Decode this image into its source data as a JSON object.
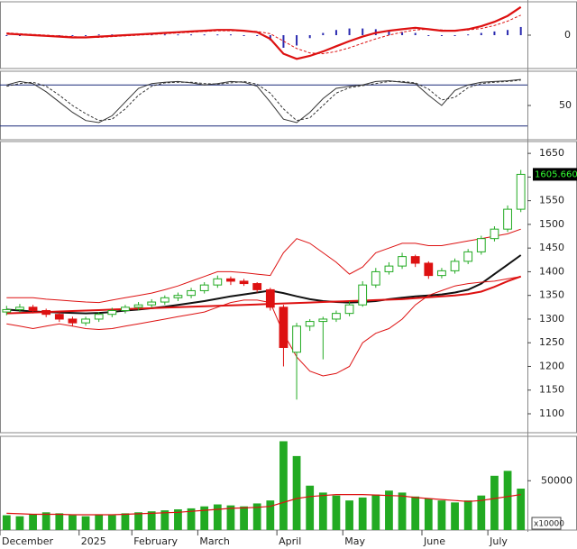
{
  "chart_data": [
    {
      "type": "macd",
      "ylim": [
        -45,
        45
      ],
      "yticks": [
        0
      ],
      "macd_color": "#dd1111",
      "signal_color": "#dd1111",
      "hist_color": "#2a2ab0",
      "macd": [
        2,
        1,
        0,
        -1,
        -2,
        -3,
        -3,
        -2,
        -1,
        0,
        1,
        2,
        3,
        4,
        5,
        6,
        7,
        7,
        6,
        4,
        -5,
        -25,
        -32,
        -28,
        -22,
        -15,
        -8,
        -2,
        3,
        6,
        8,
        10,
        8,
        6,
        6,
        8,
        12,
        18,
        26,
        38
      ],
      "signal": [
        3,
        2,
        1,
        0,
        -1,
        -2,
        -3,
        -3,
        -2,
        -1,
        0,
        1,
        2,
        3,
        4,
        5,
        6,
        6,
        6,
        5,
        2,
        -8,
        -18,
        -24,
        -25,
        -22,
        -17,
        -11,
        -5,
        0,
        4,
        7,
        8,
        7,
        6,
        7,
        9,
        13,
        19,
        27
      ],
      "histogram": [
        -1,
        -1,
        -1,
        -1,
        -1,
        -1,
        0,
        1,
        1,
        1,
        1,
        1,
        1,
        1,
        1,
        1,
        1,
        1,
        0,
        -1,
        -7,
        -17,
        -14,
        -4,
        3,
        7,
        9,
        9,
        8,
        6,
        4,
        3,
        0,
        -1,
        0,
        1,
        3,
        5,
        7,
        11
      ]
    },
    {
      "type": "oscillator",
      "ylim": [
        0,
        100
      ],
      "yticks": [
        50
      ],
      "levels": [
        20,
        80
      ],
      "color": "#333333",
      "k": [
        80,
        85,
        82,
        70,
        55,
        40,
        28,
        25,
        35,
        55,
        75,
        82,
        84,
        85,
        83,
        80,
        82,
        85,
        84,
        78,
        55,
        30,
        25,
        40,
        60,
        75,
        78,
        80,
        85,
        86,
        84,
        82,
        65,
        50,
        72,
        80,
        84,
        85,
        86,
        88
      ],
      "d": [
        78,
        82,
        84,
        78,
        65,
        50,
        38,
        28,
        30,
        45,
        65,
        78,
        83,
        84,
        84,
        82,
        81,
        83,
        85,
        81,
        68,
        45,
        28,
        32,
        50,
        68,
        76,
        79,
        82,
        85,
        85,
        83,
        74,
        58,
        62,
        76,
        82,
        84,
        85,
        87
      ]
    },
    {
      "type": "candlestick",
      "ylim": [
        1060,
        1675
      ],
      "yticks": [
        1100,
        1150,
        1200,
        1250,
        1300,
        1350,
        1400,
        1450,
        1500,
        1550,
        1600,
        1650
      ],
      "up_color": "#22aa22",
      "down_color": "#dd1111",
      "open": [
        1315,
        1320,
        1325,
        1318,
        1310,
        1300,
        1292,
        1300,
        1310,
        1318,
        1325,
        1330,
        1336,
        1345,
        1350,
        1360,
        1372,
        1385,
        1380,
        1375,
        1362,
        1325,
        1230,
        1285,
        1295,
        1300,
        1312,
        1330,
        1372,
        1400,
        1412,
        1432,
        1418,
        1392,
        1402,
        1422,
        1442,
        1470,
        1490,
        1532
      ],
      "high": [
        1328,
        1332,
        1330,
        1322,
        1314,
        1305,
        1305,
        1315,
        1324,
        1330,
        1336,
        1342,
        1350,
        1356,
        1366,
        1378,
        1392,
        1390,
        1385,
        1378,
        1366,
        1330,
        1292,
        1300,
        1305,
        1318,
        1338,
        1380,
        1408,
        1420,
        1440,
        1436,
        1422,
        1408,
        1428,
        1448,
        1476,
        1496,
        1540,
        1615
      ],
      "low": [
        1308,
        1314,
        1312,
        1304,
        1294,
        1285,
        1286,
        1294,
        1304,
        1312,
        1318,
        1324,
        1330,
        1338,
        1344,
        1354,
        1366,
        1372,
        1370,
        1356,
        1318,
        1200,
        1130,
        1275,
        1215,
        1294,
        1306,
        1326,
        1366,
        1394,
        1406,
        1410,
        1385,
        1386,
        1396,
        1416,
        1436,
        1464,
        1484,
        1526
      ],
      "close": [
        1320,
        1325,
        1318,
        1310,
        1300,
        1292,
        1300,
        1310,
        1318,
        1325,
        1330,
        1336,
        1345,
        1350,
        1360,
        1372,
        1385,
        1380,
        1375,
        1362,
        1325,
        1240,
        1285,
        1295,
        1300,
        1312,
        1330,
        1372,
        1400,
        1412,
        1432,
        1418,
        1392,
        1402,
        1422,
        1442,
        1470,
        1490,
        1532,
        1605.66
      ],
      "overlays": [
        {
          "color": "#111111",
          "width": 2,
          "values": [
            1320,
            1318,
            1316,
            1315,
            1314,
            1313,
            1312,
            1313,
            1315,
            1318,
            1320,
            1323,
            1326,
            1330,
            1334,
            1338,
            1343,
            1348,
            1352,
            1356,
            1360,
            1355,
            1348,
            1342,
            1338,
            1336,
            1335,
            1336,
            1338,
            1342,
            1345,
            1348,
            1350,
            1352,
            1356,
            1362,
            1375,
            1395,
            1415,
            1435
          ]
        },
        {
          "color": "#dd1111",
          "width": 2,
          "values": [
            1312,
            1313,
            1314,
            1315,
            1316,
            1317,
            1318,
            1319,
            1320,
            1321,
            1322,
            1323,
            1324,
            1325,
            1326,
            1327,
            1328,
            1329,
            1330,
            1331,
            1332,
            1333,
            1334,
            1335,
            1336,
            1337,
            1338,
            1339,
            1340,
            1341,
            1342,
            1344,
            1346,
            1348,
            1350,
            1353,
            1358,
            1368,
            1380,
            1390
          ]
        },
        {
          "color": "#dd1111",
          "width": 1,
          "values": [
            1345,
            1345,
            1345,
            1342,
            1340,
            1338,
            1336,
            1335,
            1340,
            1345,
            1350,
            1355,
            1362,
            1370,
            1380,
            1390,
            1400,
            1400,
            1398,
            1395,
            1392,
            1440,
            1470,
            1460,
            1440,
            1420,
            1395,
            1410,
            1440,
            1450,
            1460,
            1460,
            1455,
            1455,
            1460,
            1465,
            1470,
            1475,
            1480,
            1490
          ]
        },
        {
          "color": "#dd1111",
          "width": 1,
          "values": [
            1290,
            1285,
            1280,
            1285,
            1290,
            1285,
            1280,
            1278,
            1280,
            1285,
            1290,
            1295,
            1300,
            1305,
            1310,
            1315,
            1325,
            1335,
            1340,
            1340,
            1335,
            1270,
            1220,
            1190,
            1180,
            1185,
            1200,
            1250,
            1270,
            1280,
            1300,
            1330,
            1350,
            1360,
            1370,
            1375,
            1378,
            1380,
            1385,
            1390
          ]
        }
      ],
      "last_price": {
        "value": 1605.66,
        "label": "1605.660"
      }
    },
    {
      "type": "volume",
      "ylim": [
        0,
        95000
      ],
      "yticks": [
        50000
      ],
      "color": "#22aa22",
      "ma_color": "#dd1111",
      "unit_label": "x10000",
      "values": [
        15000,
        14000,
        16000,
        18000,
        17000,
        15000,
        14000,
        16000,
        15000,
        17000,
        18000,
        19000,
        20000,
        21000,
        22000,
        24000,
        26000,
        25000,
        24000,
        27000,
        30000,
        90000,
        75000,
        45000,
        38000,
        35000,
        30000,
        33000,
        36000,
        40000,
        38000,
        34000,
        32000,
        30000,
        28000,
        30000,
        35000,
        55000,
        60000,
        42000
      ],
      "ma": [
        17000,
        16500,
        16000,
        16000,
        16000,
        15500,
        15500,
        15500,
        15500,
        16000,
        16500,
        17000,
        17500,
        18000,
        19000,
        20000,
        21000,
        22000,
        22500,
        23000,
        24000,
        28000,
        32000,
        34000,
        35000,
        36000,
        36000,
        36000,
        35500,
        35000,
        34500,
        33000,
        32000,
        31000,
        30000,
        29000,
        30000,
        32000,
        34000,
        36000
      ],
      "categories": [
        "December",
        null,
        null,
        null,
        null,
        null,
        "2025",
        null,
        null,
        null,
        "February",
        null,
        null,
        null,
        null,
        "March",
        null,
        null,
        null,
        null,
        null,
        "April",
        null,
        null,
        null,
        null,
        "May",
        null,
        null,
        null,
        null,
        null,
        "June",
        null,
        null,
        null,
        null,
        "July",
        null,
        null
      ]
    }
  ]
}
